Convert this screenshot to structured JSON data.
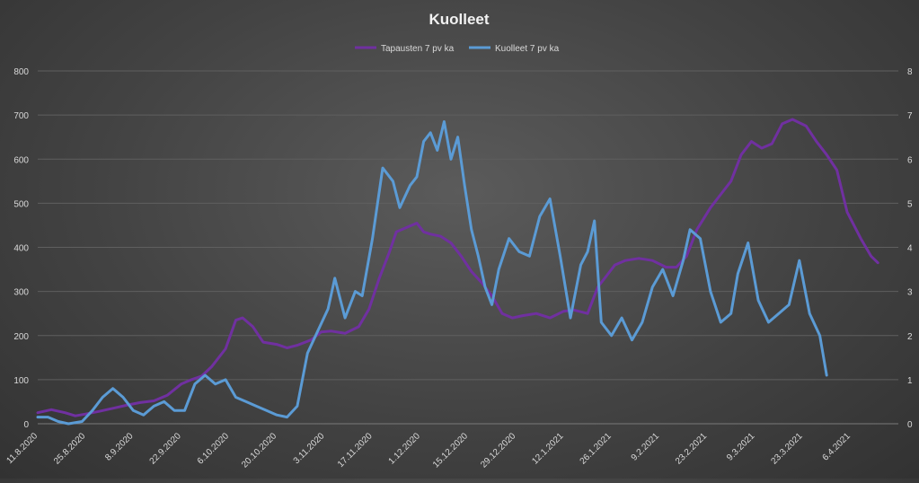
{
  "chart_data": {
    "type": "line",
    "title": "Kuolleet",
    "legend_position": "top",
    "grid": true,
    "x_tick_labels": [
      "11.8.2020",
      "25.8.2020",
      "8.9.2020",
      "22.9.2020",
      "6.10.2020",
      "20.10.2020",
      "3.11.2020",
      "17.11.2020",
      "1.12.2020",
      "15.12.2020",
      "29.12.2020",
      "12.1.2021",
      "26.1.2021",
      "9.2.2021",
      "23.2.2021",
      "9.3.2021",
      "23.3.2021",
      "6.4.2021"
    ],
    "y_left": {
      "ylim": [
        0,
        800
      ],
      "ticks": [
        "0",
        "100",
        "200",
        "300",
        "400",
        "500",
        "600",
        "700",
        "800"
      ]
    },
    "y_right": {
      "ylim": [
        0,
        8
      ],
      "ticks": [
        "0",
        "1",
        "2",
        "3",
        "4",
        "5",
        "6",
        "7",
        "8"
      ]
    },
    "series": [
      {
        "name": "Tapausten 7 pv ka",
        "axis": "left",
        "color": "#7030a0",
        "x": [
          "2020-08-11",
          "2020-08-15",
          "2020-08-19",
          "2020-08-22",
          "2020-08-25",
          "2020-08-29",
          "2020-09-02",
          "2020-09-06",
          "2020-09-10",
          "2020-09-14",
          "2020-09-18",
          "2020-09-22",
          "2020-09-25",
          "2020-09-28",
          "2020-10-01",
          "2020-10-05",
          "2020-10-08",
          "2020-10-10",
          "2020-10-13",
          "2020-10-16",
          "2020-10-20",
          "2020-10-23",
          "2020-10-26",
          "2020-10-30",
          "2020-11-02",
          "2020-11-05",
          "2020-11-09",
          "2020-11-13",
          "2020-11-16",
          "2020-11-19",
          "2020-11-22",
          "2020-11-24",
          "2020-11-27",
          "2020-11-30",
          "2020-12-02",
          "2020-12-04",
          "2020-12-07",
          "2020-12-10",
          "2020-12-13",
          "2020-12-16",
          "2020-12-19",
          "2020-12-22",
          "2020-12-25",
          "2020-12-28",
          "2020-12-31",
          "2021-01-04",
          "2021-01-08",
          "2021-01-12",
          "2021-01-15",
          "2021-01-19",
          "2021-01-22",
          "2021-01-25",
          "2021-01-27",
          "2021-01-30",
          "2021-02-03",
          "2021-02-07",
          "2021-02-11",
          "2021-02-14",
          "2021-02-17",
          "2021-02-20",
          "2021-02-24",
          "2021-02-27",
          "2021-03-02",
          "2021-03-05",
          "2021-03-08",
          "2021-03-11",
          "2021-03-14",
          "2021-03-17",
          "2021-03-20",
          "2021-03-24",
          "2021-03-27",
          "2021-03-30",
          "2021-04-02",
          "2021-04-05",
          "2021-04-09",
          "2021-04-12",
          "2021-04-14"
        ],
        "values": [
          25,
          32,
          25,
          18,
          22,
          28,
          35,
          42,
          48,
          52,
          65,
          90,
          100,
          108,
          130,
          170,
          235,
          240,
          220,
          185,
          180,
          172,
          178,
          190,
          208,
          210,
          205,
          220,
          260,
          330,
          390,
          435,
          445,
          455,
          435,
          430,
          425,
          410,
          380,
          345,
          320,
          290,
          250,
          240,
          245,
          250,
          240,
          255,
          258,
          250,
          310,
          340,
          360,
          370,
          375,
          370,
          355,
          355,
          380,
          440,
          490,
          520,
          550,
          610,
          640,
          625,
          635,
          680,
          690,
          675,
          640,
          610,
          575,
          480,
          420,
          380,
          365
        ]
      },
      {
        "name": "Kuolleet 7 pv ka",
        "axis": "right",
        "color": "#5b9bd5",
        "x": [
          "2020-08-11",
          "2020-08-14",
          "2020-08-17",
          "2020-08-20",
          "2020-08-24",
          "2020-08-27",
          "2020-08-30",
          "2020-09-02",
          "2020-09-05",
          "2020-09-08",
          "2020-09-11",
          "2020-09-14",
          "2020-09-17",
          "2020-09-20",
          "2020-09-23",
          "2020-09-26",
          "2020-09-29",
          "2020-10-02",
          "2020-10-05",
          "2020-10-08",
          "2020-10-11",
          "2020-10-14",
          "2020-10-17",
          "2020-10-20",
          "2020-10-23",
          "2020-10-26",
          "2020-10-29",
          "2020-11-01",
          "2020-11-04",
          "2020-11-06",
          "2020-11-09",
          "2020-11-12",
          "2020-11-14",
          "2020-11-17",
          "2020-11-20",
          "2020-11-23",
          "2020-11-25",
          "2020-11-28",
          "2020-11-30",
          "2020-12-02",
          "2020-12-04",
          "2020-12-06",
          "2020-12-08",
          "2020-12-10",
          "2020-12-12",
          "2020-12-14",
          "2020-12-16",
          "2020-12-18",
          "2020-12-20",
          "2020-12-22",
          "2020-12-24",
          "2020-12-27",
          "2020-12-30",
          "2021-01-02",
          "2021-01-05",
          "2021-01-08",
          "2021-01-11",
          "2021-01-14",
          "2021-01-17",
          "2021-01-19",
          "2021-01-21",
          "2021-01-23",
          "2021-01-26",
          "2021-01-29",
          "2021-02-01",
          "2021-02-04",
          "2021-02-07",
          "2021-02-10",
          "2021-02-13",
          "2021-02-16",
          "2021-02-18",
          "2021-02-21",
          "2021-02-24",
          "2021-02-27",
          "2021-03-02",
          "2021-03-04",
          "2021-03-07",
          "2021-03-10",
          "2021-03-13",
          "2021-03-16",
          "2021-03-19",
          "2021-03-22",
          "2021-03-25",
          "2021-03-28",
          "2021-03-30"
        ],
        "values": [
          0.15,
          0.15,
          0.05,
          0.0,
          0.05,
          0.3,
          0.6,
          0.8,
          0.6,
          0.3,
          0.2,
          0.4,
          0.5,
          0.3,
          0.3,
          0.9,
          1.1,
          0.9,
          1.0,
          0.6,
          0.5,
          0.4,
          0.3,
          0.2,
          0.15,
          0.4,
          1.6,
          2.1,
          2.6,
          3.3,
          2.4,
          3.0,
          2.9,
          4.2,
          5.8,
          5.5,
          4.9,
          5.4,
          5.6,
          6.4,
          6.6,
          6.2,
          6.85,
          6.0,
          6.5,
          5.4,
          4.4,
          3.8,
          3.1,
          2.7,
          3.5,
          4.2,
          3.9,
          3.8,
          4.7,
          5.1,
          3.8,
          2.4,
          3.6,
          3.9,
          4.6,
          2.3,
          2.0,
          2.4,
          1.9,
          2.3,
          3.1,
          3.5,
          2.9,
          3.7,
          4.4,
          4.2,
          3.0,
          2.3,
          2.5,
          3.4,
          4.1,
          2.8,
          2.3,
          2.5,
          2.7,
          3.7,
          2.5,
          2.0,
          1.1
        ]
      }
    ]
  }
}
